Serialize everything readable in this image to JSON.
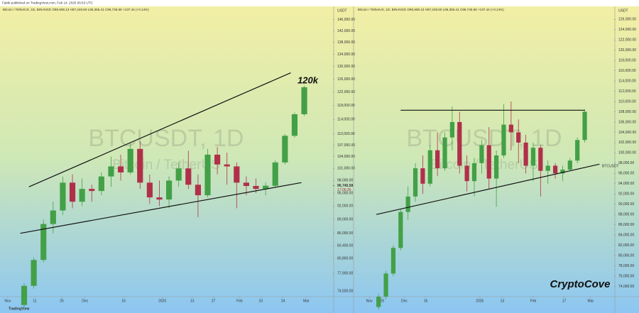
{
  "header": {
    "published": "Fabik published on TradingView.com, Feb 14, 2025 06:53 UTC"
  },
  "footer": {
    "brand": "TradingView"
  },
  "chart_data": [
    {
      "type": "candlestick",
      "legend_text": "Bitcoin / TetherUS, 1D, BINANCE O96,608.13 H97,248.60 L96,356.41 C96,745.58 +137.44 (+0.14%)",
      "watermark_title": "BTCUSDT, 1D",
      "watermark_subtitle": "Bitcoin / TetherUS",
      "axis_unit": "USDT",
      "annotation": "120k",
      "last_price": {
        "value": 96745.58,
        "label": "96,745.58"
      },
      "countdown": "17:06:36",
      "up_color": "#43a047",
      "down_color": "#b0304a",
      "log_scale": true,
      "xlim": [
        -2.5,
        31.9
      ],
      "ylim": [
        73500,
        148000
      ],
      "xticks": [
        {
          "value": -1.7,
          "label": "Nov"
        },
        {
          "value": 1.1,
          "label": "11"
        },
        {
          "value": 3.9,
          "label": "25"
        },
        {
          "value": 6.3,
          "label": "Dec"
        },
        {
          "value": 10.3,
          "label": "16"
        },
        {
          "value": 14.3,
          "label": "2025"
        },
        {
          "value": 17.4,
          "label": "13"
        },
        {
          "value": 19.6,
          "label": "27"
        },
        {
          "value": 22.3,
          "label": "Feb"
        },
        {
          "value": 24.5,
          "label": "10"
        },
        {
          "value": 26.8,
          "label": "24"
        },
        {
          "value": 29.2,
          "label": "Mar"
        }
      ],
      "yticks": [
        {
          "value": 146000,
          "label": "146,000.00"
        },
        {
          "value": 142000,
          "label": "142,000.00"
        },
        {
          "value": 138000,
          "label": "138,000.00"
        },
        {
          "value": 134000,
          "label": "134,000.00"
        },
        {
          "value": 130000,
          "label": "130,000.00"
        },
        {
          "value": 126000,
          "label": "126,000.00"
        },
        {
          "value": 122000,
          "label": "122,000.00"
        },
        {
          "value": 118000,
          "label": "118,000.00"
        },
        {
          "value": 114000,
          "label": "114,000.00"
        },
        {
          "value": 110000,
          "label": "110,000.00"
        },
        {
          "value": 107000,
          "label": "107,000.00"
        },
        {
          "value": 104000,
          "label": "104,000.00"
        },
        {
          "value": 101000,
          "label": "101,000.00"
        },
        {
          "value": 98000,
          "label": "98,000.00"
        },
        {
          "value": 95000,
          "label": "95,000.00"
        },
        {
          "value": 92000,
          "label": "92,000.00"
        },
        {
          "value": 89000,
          "label": "89,000.00"
        },
        {
          "value": 86000,
          "label": "86,000.00"
        },
        {
          "value": 83400,
          "label": "83,400.00"
        },
        {
          "value": 80800,
          "label": "80,800.00"
        },
        {
          "value": 77900,
          "label": "77,900.00"
        },
        {
          "value": 74500,
          "label": "74,500.00"
        }
      ],
      "candles": {
        "open": [
          72000,
          75500,
          80500,
          88000,
          91000,
          97500,
          93000,
          96000,
          95500,
          99000,
          101500,
          100000,
          106000,
          97500,
          94000,
          93500,
          98000,
          101000,
          97000,
          94500,
          104500,
          102000,
          101500,
          97500,
          96700,
          96000,
          96745,
          102500,
          109500,
          115500
        ],
        "high": [
          76000,
          81000,
          89000,
          93000,
          99000,
          99500,
          98500,
          97000,
          100000,
          104000,
          104500,
          107500,
          108000,
          99500,
          98000,
          99000,
          102500,
          105500,
          99500,
          106000,
          106500,
          105000,
          102500,
          99000,
          98500,
          97500,
          103000,
          110000,
          116000,
          124000
        ],
        "low": [
          71500,
          75000,
          80000,
          86000,
          90000,
          91500,
          92000,
          93000,
          94500,
          96500,
          98000,
          99500,
          96000,
          92500,
          92000,
          91500,
          96500,
          96000,
          89500,
          94000,
          99500,
          97000,
          91500,
          94500,
          95000,
          94500,
          96500,
          102000,
          109000,
          115000
        ],
        "close": [
          75500,
          80500,
          88000,
          91000,
          97500,
          93000,
          96000,
          95500,
          99000,
          101500,
          100000,
          106000,
          97500,
          94000,
          93500,
          98000,
          101000,
          97000,
          94500,
          104500,
          102000,
          101500,
          97500,
          96700,
          96000,
          96745.58,
          102500,
          109500,
          115500,
          123500
        ]
      },
      "trendlines": [
        {
          "x": [
            0.5,
            27.6
          ],
          "y": [
            96500,
            128000
          ]
        },
        {
          "x": [
            -0.4,
            28.7
          ],
          "y": [
            86000,
            97500
          ]
        }
      ]
    },
    {
      "type": "candlestick",
      "legend_text": "Bitcoin / TetherUS, 1D, BINANCE O96,608.13 H97,248.60 L96,356.41 C96,745.58 +137.44 (+0.14%)",
      "watermark_title": "BTCUSDT, 1D",
      "watermark_subtitle": "Bitcoin / TetherUS",
      "axis_unit": "USDT",
      "line_label": "BTCUSDT",
      "signature": "CryptoCove",
      "up_color": "#43a047",
      "down_color": "#b0304a",
      "log_scale": false,
      "xlim": [
        -3.2,
        31.9
      ],
      "ylim": [
        72000,
        127000
      ],
      "xticks": [
        {
          "value": -1.25,
          "label": "Nov"
        },
        {
          "value": 0.5,
          "label": "25"
        },
        {
          "value": 3.5,
          "label": "Dec"
        },
        {
          "value": 6.4,
          "label": "16"
        },
        {
          "value": 13.75,
          "label": "2025"
        },
        {
          "value": 16.8,
          "label": "13"
        },
        {
          "value": 21,
          "label": "Feb"
        },
        {
          "value": 25.2,
          "label": "17"
        },
        {
          "value": 28.8,
          "label": "Mar"
        }
      ],
      "yticks": [
        {
          "value": 126000,
          "label": "126,000.00"
        },
        {
          "value": 124000,
          "label": "124,000.00"
        },
        {
          "value": 122000,
          "label": "122,000.00"
        },
        {
          "value": 120000,
          "label": "120,000.00"
        },
        {
          "value": 118000,
          "label": "118,000.00"
        },
        {
          "value": 116000,
          "label": "116,000.00"
        },
        {
          "value": 114000,
          "label": "114,000.00"
        },
        {
          "value": 112000,
          "label": "112,000.00"
        },
        {
          "value": 110000,
          "label": "110,000.00"
        },
        {
          "value": 108000,
          "label": "108,000.00"
        },
        {
          "value": 106000,
          "label": "106,000.00"
        },
        {
          "value": 104000,
          "label": "104,000.00"
        },
        {
          "value": 102000,
          "label": "102,000.00"
        },
        {
          "value": 100000,
          "label": "100,000.00"
        },
        {
          "value": 98000,
          "label": "98,000.00"
        },
        {
          "value": 96000,
          "label": "96,000.00"
        },
        {
          "value": 94000,
          "label": "94,000.00"
        },
        {
          "value": 92000,
          "label": "92,000.00"
        },
        {
          "value": 90000,
          "label": "90,000.00"
        },
        {
          "value": 88000,
          "label": "88,000.00"
        },
        {
          "value": 86000,
          "label": "86,000.00"
        },
        {
          "value": 84000,
          "label": "84,000.00"
        },
        {
          "value": 82000,
          "label": "82,000.00"
        },
        {
          "value": 80000,
          "label": "80,000.00"
        },
        {
          "value": 78000,
          "label": "78,000.00"
        },
        {
          "value": 76000,
          "label": "76,000.00"
        },
        {
          "value": 74000,
          "label": "74,000.00"
        }
      ],
      "candles": {
        "open": [
          70000,
          72000,
          76500,
          81500,
          88500,
          91500,
          97000,
          94000,
          100500,
          97000,
          103000,
          106000,
          97500,
          94500,
          98000,
          101500,
          95000,
          99500,
          105500,
          104000,
          102000,
          97500,
          101000,
          96500,
          97500,
          96000,
          96745,
          98500,
          102500
        ],
        "high": [
          72500,
          77000,
          82000,
          89000,
          93500,
          98000,
          99500,
          101500,
          104000,
          104000,
          109000,
          108000,
          99500,
          99000,
          102500,
          105000,
          100500,
          109500,
          110000,
          106500,
          103500,
          102000,
          101500,
          98500,
          98000,
          97500,
          99000,
          103000,
          108500
        ],
        "low": [
          69500,
          71500,
          76000,
          81000,
          87000,
          90500,
          92000,
          93500,
          95500,
          96500,
          100500,
          96000,
          92500,
          91500,
          96000,
          93000,
          89500,
          99000,
          100500,
          98000,
          96000,
          94500,
          91500,
          94000,
          95000,
          94500,
          96500,
          98000,
          102000
        ],
        "close": [
          72000,
          76500,
          81500,
          88500,
          91500,
          97000,
          94000,
          100500,
          97000,
          103000,
          106000,
          97500,
          94500,
          98000,
          101500,
          95000,
          99500,
          105500,
          104000,
          102000,
          97500,
          101000,
          96500,
          97500,
          96000,
          96745.58,
          98500,
          102500,
          108000
        ]
      },
      "trendlines": [
        {
          "x": [
            3,
            28
          ],
          "y": [
            108300,
            108300
          ]
        },
        {
          "x": [
            -0.3,
            30
          ],
          "y": [
            88000,
            97800
          ]
        }
      ]
    }
  ]
}
